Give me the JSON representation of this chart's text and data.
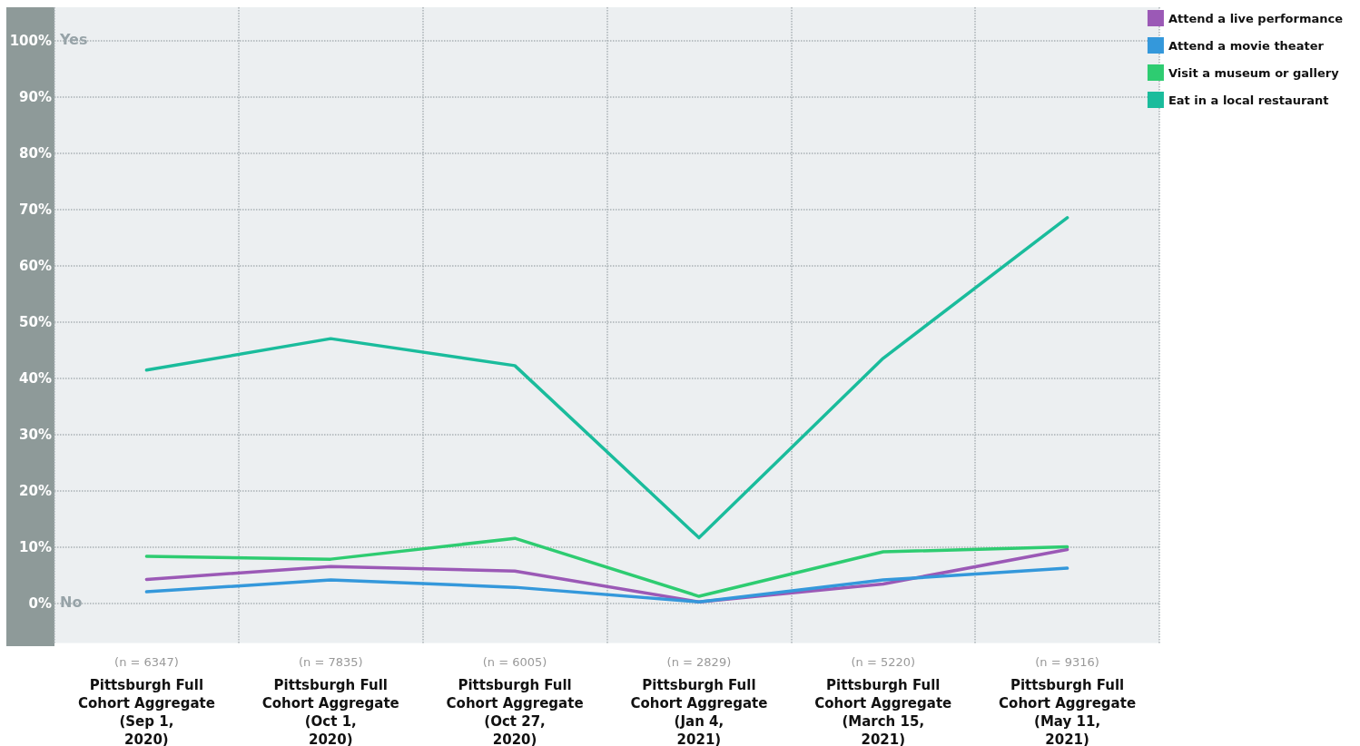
{
  "chart_data": {
    "type": "line",
    "categories": [
      "(n = 6347)\nPittsburgh Full\nCohort Aggregate\n(Sep 1,\n2020)",
      "(n = 7835)\nPittsburgh Full\nCohort Aggregate\n(Oct 1,\n2020)",
      "(n = 6005)\nPittsburgh Full\nCohort Aggregate\n(Oct 27,\n2020)",
      "(n = 2829)\nPittsburgh Full\nCohort Aggregate\n(Jan 4,\n2021)",
      "(n = 5220)\nPittsburgh Full\nCohort Aggregate\n(March 15,\n2021)",
      "(n = 9316)\nPittsburgh Full\nCohort Aggregate\n(May 11,\n2021)"
    ],
    "series": [
      {
        "name": "Attend a live performance",
        "color": "#9b59b6",
        "values": [
          4.3,
          6.6,
          5.8,
          0.3,
          3.5,
          9.6
        ]
      },
      {
        "name": "Attend a movie theater",
        "color": "#3498db",
        "values": [
          2.1,
          4.2,
          2.9,
          0.3,
          4.2,
          6.3
        ]
      },
      {
        "name": "Visit a museum or gallery",
        "color": "#2ecc71",
        "values": [
          8.4,
          7.9,
          11.6,
          1.3,
          9.2,
          10.1
        ]
      },
      {
        "name": "Eat in a local restaurant",
        "color": "#1abc9c",
        "values": [
          41.5,
          47.1,
          42.3,
          11.7,
          43.6,
          68.6
        ]
      }
    ],
    "ylim": [
      -7,
      106
    ],
    "yticks": [
      {
        "value": 0,
        "label": "0%"
      },
      {
        "value": 10,
        "label": "10%"
      },
      {
        "value": 20,
        "label": "20%"
      },
      {
        "value": 30,
        "label": "30%"
      },
      {
        "value": 40,
        "label": "40%"
      },
      {
        "value": 50,
        "label": "50%"
      },
      {
        "value": 60,
        "label": "60%"
      },
      {
        "value": 70,
        "label": "70%"
      },
      {
        "value": 80,
        "label": "80%"
      },
      {
        "value": 90,
        "label": "90%"
      },
      {
        "value": 100,
        "label": "100%"
      }
    ],
    "annotations": [
      "Yes",
      "No"
    ],
    "grid": true,
    "legend": "top right",
    "line_style": "solid"
  }
}
